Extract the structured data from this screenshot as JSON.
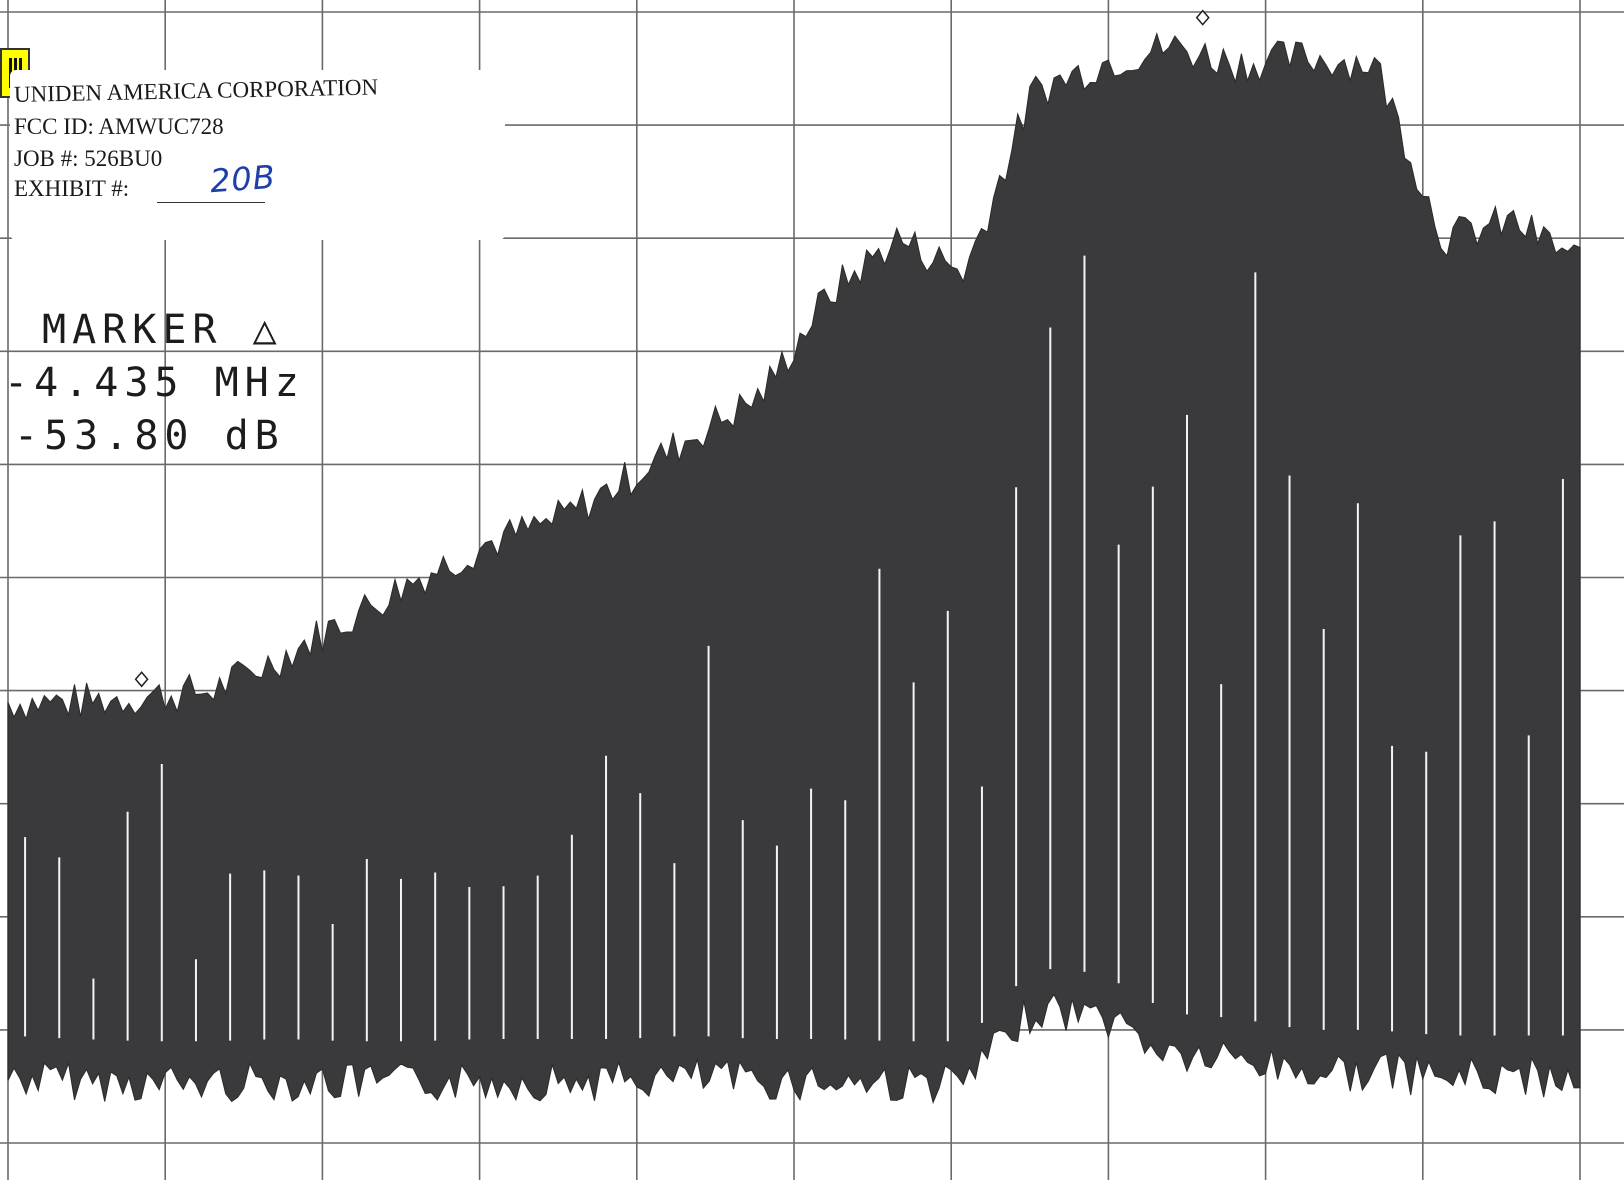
{
  "document": {
    "company": "UNIDEN AMERICA CORPORATION",
    "fcc_id": "FCC ID: AMWUC728",
    "job": "JOB #: 526BU0",
    "exhibit_label": "EXHIBIT #:",
    "exhibit_value": "20B"
  },
  "marker": {
    "title": "MARKER △",
    "frequency": "-4.435 MHz",
    "level": "-53.80 dB"
  },
  "chart_data": {
    "type": "area",
    "title": "",
    "xlabel": "",
    "ylabel": "",
    "grid": true,
    "grid_divisions": {
      "x": 10,
      "y": 10
    },
    "y_levels_div_above_bottom": [
      3.9,
      3.9,
      3.95,
      4.0,
      4.3,
      4.65,
      5.0,
      5.3,
      5.5,
      5.85,
      6.25,
      6.6,
      7.5,
      8.0,
      7.7,
      9.3,
      9.55,
      9.7,
      9.55,
      9.6,
      9.55,
      8.0,
      8.15,
      7.8
    ],
    "y_floor_div_above_bottom": [
      0.75,
      0.72,
      0.7,
      0.7,
      0.72,
      0.7,
      0.7,
      0.72,
      0.72,
      0.72,
      0.75,
      0.72,
      0.72,
      0.7,
      0.7,
      1.35,
      1.3,
      0.95,
      0.9,
      0.8,
      0.8,
      0.75,
      0.75,
      0.75
    ],
    "markers_div": [
      [
        0.85,
        4.1
      ],
      [
        7.6,
        9.95
      ]
    ],
    "series": [
      {
        "values": []
      }
    ]
  }
}
